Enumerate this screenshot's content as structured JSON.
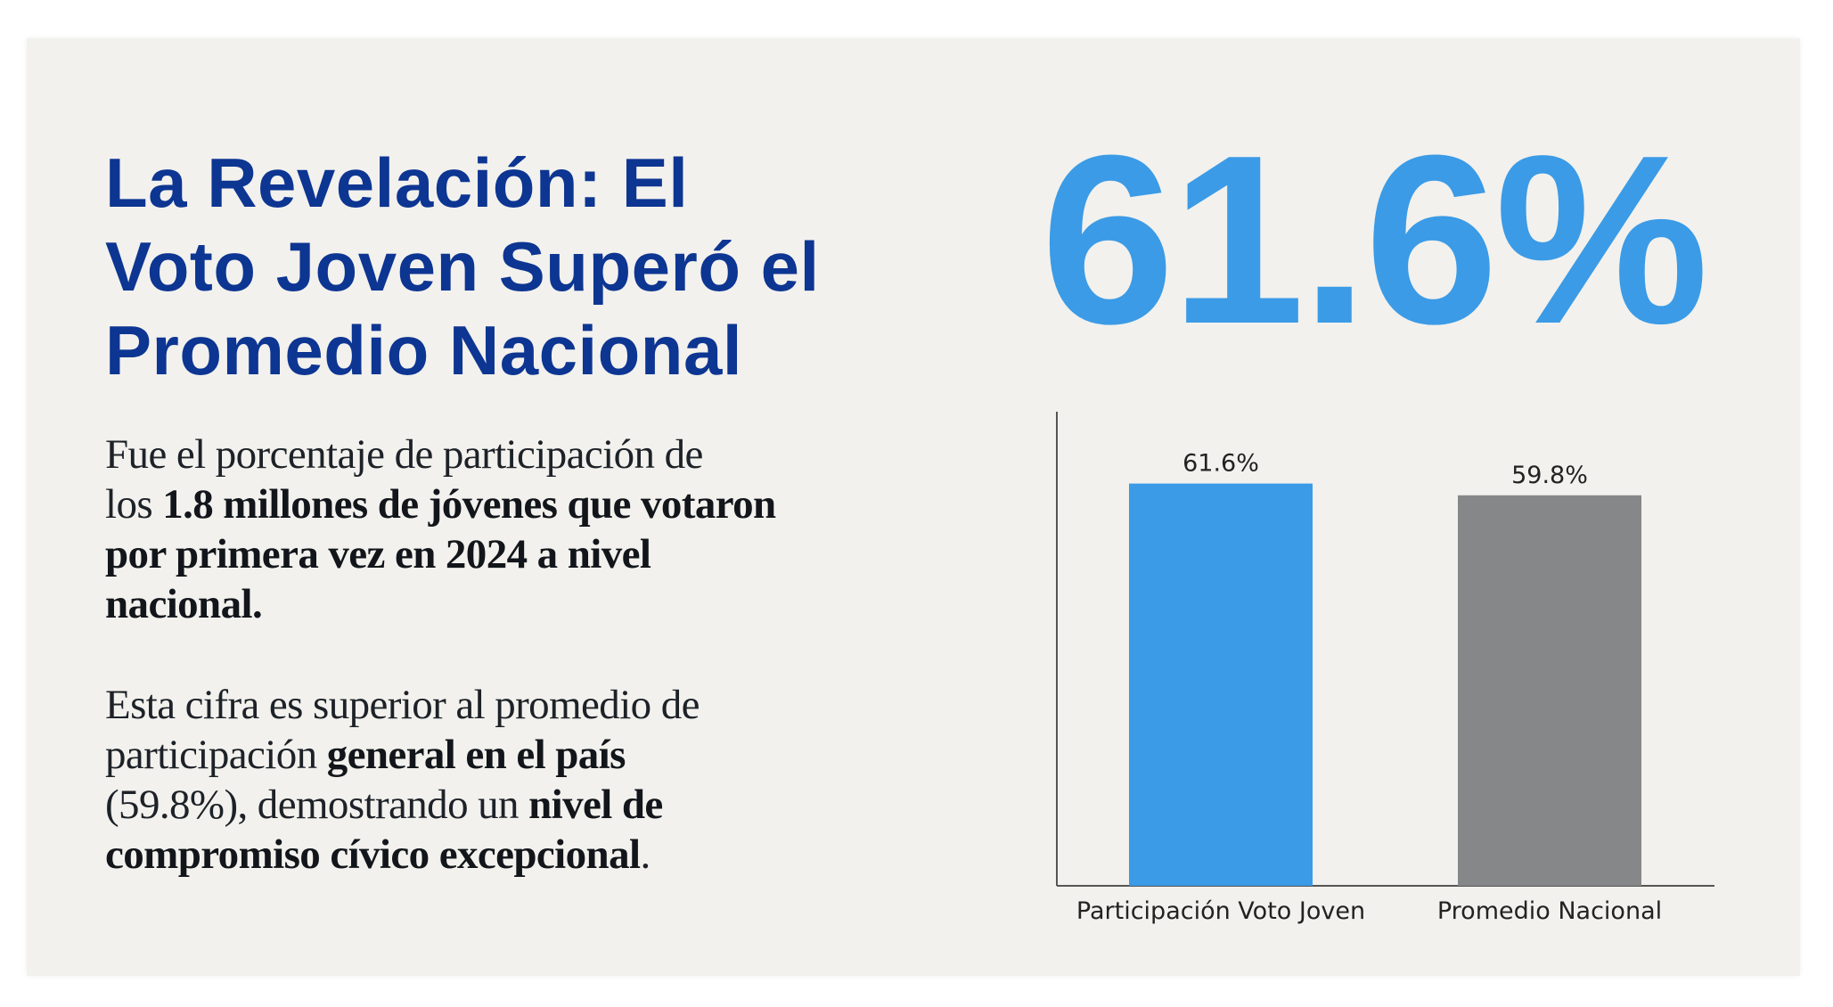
{
  "title_lines": [
    "La Revelación: El",
    "Voto Joven Superó el",
    "Promedio Nacional"
  ],
  "headline_stat": "61.6%",
  "paragraph1": {
    "line1": "Fue el porcentaje de participación de",
    "line2_plain": "los ",
    "line2_bold": "1.8 millones de jóvenes que votaron",
    "line3_bold": "por primera vez en 2024 a nivel",
    "line4_bold": "nacional."
  },
  "paragraph2": {
    "line1": "Esta cifra es superior al promedio de",
    "line2_plain": "participación ",
    "line2_bold": "general en el país",
    "line3_plain": "(59.8%), demostrando un ",
    "line3_bold": "nivel de",
    "line4_bold": "compromiso cívico excepcional",
    "line4_plain": "."
  },
  "colors": {
    "title": "#0d3592",
    "accent": "#3b9be6",
    "comparison": "#858788"
  },
  "chart_data": {
    "type": "bar",
    "categories": [
      "Participación Voto Joven",
      "Promedio Nacional"
    ],
    "values": [
      61.6,
      59.8
    ],
    "data_labels": [
      "61.6%",
      "59.8%"
    ],
    "colors": [
      "#3b9be6",
      "#858788"
    ],
    "ylim": [
      0,
      72.6
    ],
    "grid": false,
    "y_ticks": false
  }
}
